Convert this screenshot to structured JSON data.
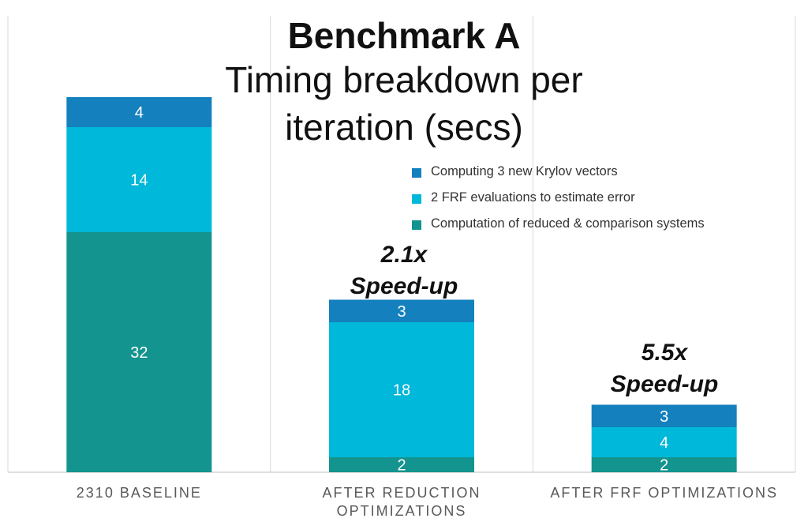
{
  "chart_data": {
    "type": "bar",
    "stacked": true,
    "title": "Benchmark A",
    "subtitle_line1": "Timing breakdown per",
    "subtitle_line2": "iteration (secs)",
    "categories": [
      [
        "2310 BASELINE"
      ],
      [
        "AFTER REDUCTION",
        "OPTIMIZATIONS"
      ],
      [
        "AFTER FRF OPTIMIZATIONS"
      ]
    ],
    "series": [
      {
        "name": "Computation of reduced & comparison systems",
        "color": "#13948F",
        "values": [
          32,
          2,
          2
        ]
      },
      {
        "name": "2 FRF evaluations to estimate error",
        "color": "#00B8D9",
        "values": [
          14,
          18,
          4
        ]
      },
      {
        "name": "Computing 3 new Krylov vectors",
        "color": "#1481BE",
        "values": [
          4,
          3,
          3
        ]
      }
    ],
    "legend_order": [
      2,
      1,
      0
    ],
    "legend_position": "top-right",
    "ylim": [
      0,
      50
    ],
    "grid": "vertical separators",
    "annotations": [
      {
        "category_index": 1,
        "line1": "2.1x",
        "line2": "Speed-up"
      },
      {
        "category_index": 2,
        "line1": "5.5x",
        "line2": "Speed-up"
      }
    ]
  }
}
